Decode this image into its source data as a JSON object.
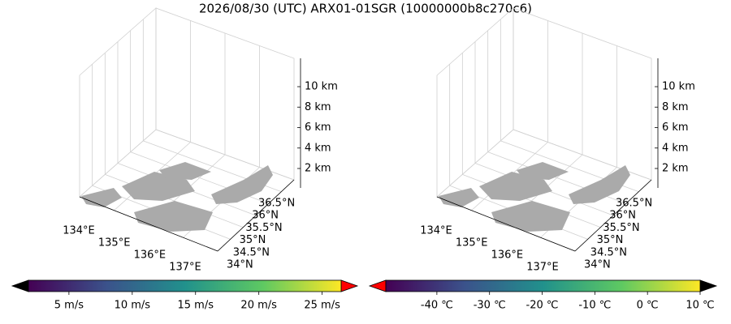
{
  "title": "2026/08/30 (UTC) ARX01-01SGR (10000000b8c270c6)",
  "panels": [
    {
      "x_ticks": [
        "134°E",
        "135°E",
        "136°E",
        "137°E"
      ],
      "y_ticks": [
        "34°N",
        "34.5°N",
        "35°N",
        "35.5°N",
        "36°N",
        "36.5°N"
      ],
      "z_ticks": [
        "2 km",
        "4 km",
        "6 km",
        "8 km",
        "10 km"
      ]
    },
    {
      "x_ticks": [
        "134°E",
        "135°E",
        "136°E",
        "137°E"
      ],
      "y_ticks": [
        "34°N",
        "34.5°N",
        "35°N",
        "35.5°N",
        "36°N",
        "36.5°N"
      ],
      "z_ticks": [
        "2 km",
        "4 km",
        "6 km",
        "8 km",
        "10 km"
      ]
    }
  ],
  "colorbars": [
    {
      "lim": [
        1.8,
        26.5
      ],
      "ticks": [
        {
          "value": 5,
          "label": "5 m/s"
        },
        {
          "value": 10,
          "label": "10 m/s"
        },
        {
          "value": 15,
          "label": "15 m/s"
        },
        {
          "value": 20,
          "label": "20 m/s"
        },
        {
          "value": 25,
          "label": "25 m/s"
        }
      ]
    },
    {
      "lim": [
        -49.7,
        10
      ],
      "ticks": [
        {
          "value": -40,
          "label": "-40 ℃"
        },
        {
          "value": -30,
          "label": "-30 ℃"
        },
        {
          "value": -20,
          "label": "-20 ℃"
        },
        {
          "value": -10,
          "label": "-10 ℃"
        },
        {
          "value": 0,
          "label": "0 ℃"
        },
        {
          "value": 10,
          "label": "10 ℃"
        }
      ]
    }
  ]
}
